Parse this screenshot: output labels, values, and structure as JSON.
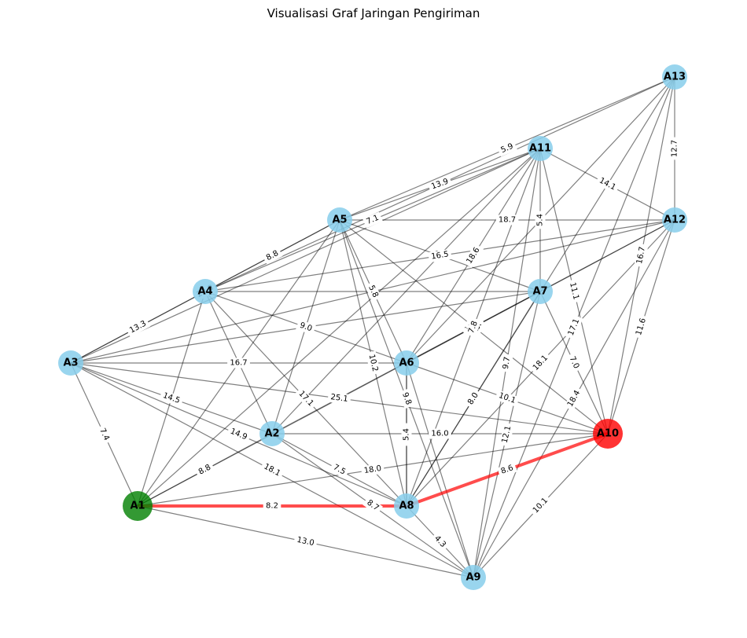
{
  "title": "Visualisasi Graf Jaringan Pengiriman",
  "colors": {
    "node_default": "#87ceeb",
    "node_start": "#008000",
    "node_end": "#ff0000",
    "edge_default": "#000000",
    "edge_path": "#ff0000"
  },
  "nodes": [
    {
      "id": "A1",
      "role": "start"
    },
    {
      "id": "A2",
      "role": "default"
    },
    {
      "id": "A3",
      "role": "default"
    },
    {
      "id": "A4",
      "role": "default"
    },
    {
      "id": "A5",
      "role": "default"
    },
    {
      "id": "A6",
      "role": "default"
    },
    {
      "id": "A7",
      "role": "default"
    },
    {
      "id": "A8",
      "role": "default"
    },
    {
      "id": "A9",
      "role": "default"
    },
    {
      "id": "A10",
      "role": "end"
    },
    {
      "id": "A11",
      "role": "default"
    },
    {
      "id": "A12",
      "role": "default"
    },
    {
      "id": "A13",
      "role": "default"
    }
  ],
  "edges": [
    {
      "source": "A1",
      "target": "A8",
      "weight": "8.2",
      "highlight": true
    },
    {
      "source": "A8",
      "target": "A10",
      "weight": "8.6",
      "highlight": true
    },
    {
      "source": "A1",
      "target": "A3",
      "weight": "7.4"
    },
    {
      "source": "A1",
      "target": "A2",
      "weight": "8.8"
    },
    {
      "source": "A1",
      "target": "A9",
      "weight": "13.0"
    },
    {
      "source": "A1",
      "target": "A10",
      "weight": "18.0"
    },
    {
      "source": "A1",
      "target": "A7",
      "weight": ""
    },
    {
      "source": "A1",
      "target": "A4",
      "weight": ""
    },
    {
      "source": "A1",
      "target": "A11",
      "weight": ""
    },
    {
      "source": "A1",
      "target": "A5",
      "weight": ""
    },
    {
      "source": "A2",
      "target": "A3",
      "weight": "14.5"
    },
    {
      "source": "A2",
      "target": "A8",
      "weight": "7.5"
    },
    {
      "source": "A2",
      "target": "A9",
      "weight": "8.7"
    },
    {
      "source": "A2",
      "target": "A10",
      "weight": "16.0"
    },
    {
      "source": "A2",
      "target": "A4",
      "weight": ""
    },
    {
      "source": "A2",
      "target": "A5",
      "weight": ""
    },
    {
      "source": "A2",
      "target": "A12",
      "weight": "11.1"
    },
    {
      "source": "A2",
      "target": "A11",
      "weight": ""
    },
    {
      "source": "A3",
      "target": "A9",
      "weight": "18.1"
    },
    {
      "source": "A3",
      "target": "A8",
      "weight": "14.9"
    },
    {
      "source": "A3",
      "target": "A4",
      "weight": "13.3"
    },
    {
      "source": "A3",
      "target": "A5",
      "weight": "23.8"
    },
    {
      "source": "A3",
      "target": "A6",
      "weight": "16.7"
    },
    {
      "source": "A3",
      "target": "A10",
      "weight": "25.1"
    },
    {
      "source": "A3",
      "target": "A7",
      "weight": ""
    },
    {
      "source": "A3",
      "target": "A11",
      "weight": ""
    },
    {
      "source": "A3",
      "target": "A12",
      "weight": ""
    },
    {
      "source": "A4",
      "target": "A5",
      "weight": "8.8"
    },
    {
      "source": "A4",
      "target": "A6",
      "weight": "9.0"
    },
    {
      "source": "A4",
      "target": "A8",
      "weight": "17.1"
    },
    {
      "source": "A4",
      "target": "A7",
      "weight": ""
    },
    {
      "source": "A4",
      "target": "A11",
      "weight": "7.1"
    },
    {
      "source": "A4",
      "target": "A13",
      "weight": "10.6"
    },
    {
      "source": "A5",
      "target": "A11",
      "weight": "13.9"
    },
    {
      "source": "A5",
      "target": "A13",
      "weight": "5.9"
    },
    {
      "source": "A5",
      "target": "A12",
      "weight": "18.7"
    },
    {
      "source": "A5",
      "target": "A7",
      "weight": "9.7"
    },
    {
      "source": "A5",
      "target": "A6",
      "weight": "5.8"
    },
    {
      "source": "A5",
      "target": "A8",
      "weight": "10.2"
    },
    {
      "source": "A5",
      "target": "A9",
      "weight": "9.8"
    },
    {
      "source": "A5",
      "target": "A10",
      "weight": "9.3"
    },
    {
      "source": "A6",
      "target": "A10",
      "weight": "10.1"
    },
    {
      "source": "A6",
      "target": "A8",
      "weight": "14.5"
    },
    {
      "source": "A6",
      "target": "A9",
      "weight": ""
    },
    {
      "source": "A6",
      "target": "A11",
      "weight": "18.6"
    },
    {
      "source": "A6",
      "target": "A13",
      "weight": ""
    },
    {
      "source": "A6",
      "target": "A12",
      "weight": ""
    },
    {
      "source": "A7",
      "target": "A8",
      "weight": "8.0"
    },
    {
      "source": "A7",
      "target": "A10",
      "weight": "7.0"
    },
    {
      "source": "A7",
      "target": "A11",
      "weight": "5.4"
    },
    {
      "source": "A7",
      "target": "A9",
      "weight": "12.1"
    },
    {
      "source": "A8",
      "target": "A9",
      "weight": "4.3"
    },
    {
      "source": "A8",
      "target": "A11",
      "weight": "7.8"
    },
    {
      "source": "A8",
      "target": "A12",
      "weight": "18.1"
    },
    {
      "source": "A8",
      "target": "A13",
      "weight": ""
    },
    {
      "source": "A8",
      "target": "A6",
      "weight": "5.4"
    },
    {
      "source": "A9",
      "target": "A10",
      "weight": "10.1"
    },
    {
      "source": "A9",
      "target": "A11",
      "weight": "9.7"
    },
    {
      "source": "A9",
      "target": "A12",
      "weight": "18.4"
    },
    {
      "source": "A9",
      "target": "A13",
      "weight": "17.1"
    },
    {
      "source": "A10",
      "target": "A11",
      "weight": "11.1"
    },
    {
      "source": "A10",
      "target": "A12",
      "weight": "11.6"
    },
    {
      "source": "A10",
      "target": "A13",
      "weight": "16.7"
    },
    {
      "source": "A11",
      "target": "A12",
      "weight": "14.1"
    },
    {
      "source": "A12",
      "target": "A13",
      "weight": "12.7"
    },
    {
      "source": "A4",
      "target": "A12",
      "weight": "16.5"
    }
  ]
}
